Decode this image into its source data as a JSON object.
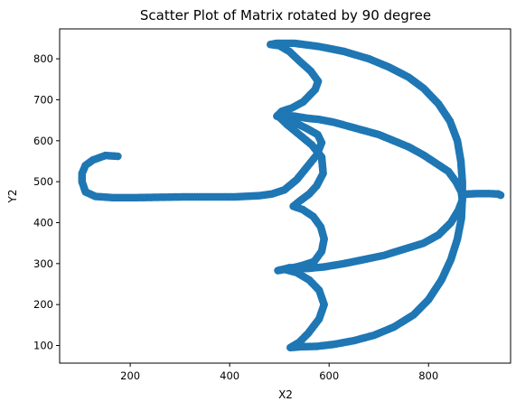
{
  "colors": {
    "marker": "#1f77b4",
    "axis": "#000000",
    "background": "#ffffff"
  },
  "chart_data": {
    "type": "scatter",
    "title": "Scatter Plot of Matrix rotated by 90 degree",
    "xlabel": "X2",
    "ylabel": "Y2",
    "xlim": [
      58,
      965
    ],
    "ylim": [
      57,
      873
    ],
    "grid": false,
    "x_ticks": [
      200,
      400,
      600,
      800
    ],
    "y_ticks": [
      100,
      200,
      300,
      400,
      500,
      600,
      700,
      800
    ],
    "x_tick_labels": [
      "200",
      "400",
      "600",
      "800"
    ],
    "y_tick_labels": [
      "100",
      "200",
      "300",
      "400",
      "500",
      "600",
      "700",
      "800"
    ],
    "series": [
      {
        "color": "#1f77b4",
        "path_points": [
          [
            175,
            562
          ],
          [
            150,
            564
          ],
          [
            125,
            553
          ],
          [
            110,
            540
          ],
          [
            103,
            520
          ],
          [
            103,
            500
          ],
          [
            110,
            475
          ],
          [
            130,
            464
          ],
          [
            165,
            461
          ],
          [
            210,
            461
          ],
          [
            260,
            462
          ],
          [
            310,
            463
          ],
          [
            360,
            463
          ],
          [
            410,
            463
          ],
          [
            460,
            466
          ],
          [
            485,
            470
          ],
          [
            510,
            480
          ],
          [
            535,
            505
          ],
          [
            555,
            535
          ],
          [
            575,
            565
          ],
          [
            585,
            595
          ],
          [
            577,
            615
          ],
          [
            555,
            630
          ],
          [
            535,
            642
          ],
          [
            510,
            652
          ],
          [
            495,
            660
          ],
          [
            505,
            672
          ],
          [
            525,
            680
          ],
          [
            548,
            695
          ],
          [
            572,
            725
          ],
          [
            578,
            745
          ],
          [
            563,
            770
          ],
          [
            540,
            795
          ],
          [
            520,
            818
          ],
          [
            500,
            832
          ],
          [
            482,
            835
          ],
          [
            495,
            838
          ],
          [
            530,
            838
          ],
          [
            580,
            830
          ],
          [
            630,
            818
          ],
          [
            680,
            800
          ],
          [
            720,
            780
          ],
          [
            760,
            755
          ],
          [
            790,
            728
          ],
          [
            820,
            690
          ],
          [
            843,
            648
          ],
          [
            858,
            600
          ],
          [
            865,
            550
          ],
          [
            868,
            500
          ],
          [
            868,
            460
          ],
          [
            866,
            410
          ],
          [
            858,
            360
          ],
          [
            845,
            310
          ],
          [
            826,
            260
          ],
          [
            800,
            212
          ],
          [
            770,
            175
          ],
          [
            730,
            145
          ],
          [
            690,
            125
          ],
          [
            650,
            112
          ],
          [
            610,
            103
          ],
          [
            575,
            98
          ],
          [
            543,
            97
          ],
          [
            522,
            95
          ],
          [
            540,
            108
          ],
          [
            558,
            130
          ],
          [
            580,
            165
          ],
          [
            590,
            200
          ],
          [
            580,
            235
          ],
          [
            560,
            260
          ],
          [
            535,
            278
          ],
          [
            510,
            286
          ],
          [
            497,
            283
          ],
          [
            520,
            290
          ],
          [
            555,
            288
          ],
          [
            590,
            292
          ],
          [
            630,
            300
          ],
          [
            670,
            310
          ],
          [
            710,
            320
          ],
          [
            750,
            335
          ],
          [
            790,
            350
          ],
          [
            820,
            370
          ],
          [
            845,
            400
          ],
          [
            860,
            430
          ],
          [
            868,
            455
          ],
          [
            866,
            475
          ],
          [
            855,
            500
          ],
          [
            840,
            525
          ],
          [
            815,
            545
          ],
          [
            790,
            565
          ],
          [
            760,
            585
          ],
          [
            730,
            600
          ],
          [
            700,
            615
          ],
          [
            670,
            625
          ],
          [
            640,
            635
          ],
          [
            610,
            645
          ],
          [
            580,
            652
          ],
          [
            555,
            655
          ],
          [
            530,
            660
          ],
          [
            510,
            662
          ],
          [
            498,
            660
          ],
          [
            515,
            640
          ],
          [
            540,
            615
          ],
          [
            565,
            590
          ],
          [
            585,
            560
          ],
          [
            588,
            520
          ],
          [
            575,
            490
          ],
          [
            560,
            470
          ],
          [
            540,
            452
          ],
          [
            528,
            440
          ],
          [
            547,
            432
          ],
          [
            568,
            415
          ],
          [
            583,
            390
          ],
          [
            590,
            360
          ],
          [
            585,
            330
          ],
          [
            570,
            305
          ],
          [
            545,
            295
          ],
          [
            520,
            288
          ],
          [
            500,
            284
          ]
        ],
        "branches": [
          [
            [
              868,
              468
            ],
            [
              880,
              470
            ],
            [
              900,
              471
            ],
            [
              920,
              471
            ],
            [
              940,
              470
            ],
            [
              945,
              467
            ]
          ]
        ]
      }
    ]
  }
}
